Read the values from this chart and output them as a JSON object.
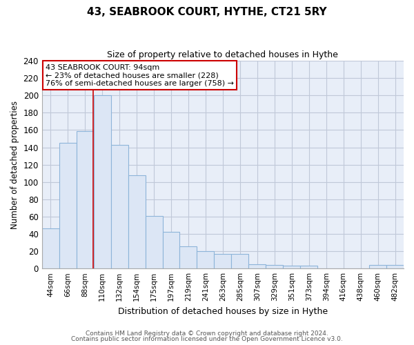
{
  "title": "43, SEABROOK COURT, HYTHE, CT21 5RY",
  "subtitle": "Size of property relative to detached houses in Hythe",
  "xlabel": "Distribution of detached houses by size in Hythe",
  "ylabel": "Number of detached properties",
  "bar_labels": [
    "44sqm",
    "66sqm",
    "88sqm",
    "110sqm",
    "132sqm",
    "154sqm",
    "175sqm",
    "197sqm",
    "219sqm",
    "241sqm",
    "263sqm",
    "285sqm",
    "307sqm",
    "329sqm",
    "351sqm",
    "373sqm",
    "394sqm",
    "416sqm",
    "438sqm",
    "460sqm",
    "482sqm"
  ],
  "bar_values": [
    46,
    145,
    159,
    200,
    143,
    108,
    61,
    42,
    26,
    20,
    17,
    17,
    5,
    4,
    3,
    3,
    0,
    0,
    0,
    4,
    4
  ],
  "bar_color": "#dce6f5",
  "bar_edge_color": "#8db4d9",
  "plot_bg_color": "#e8eef8",
  "ylim": [
    0,
    240
  ],
  "yticks": [
    0,
    20,
    40,
    60,
    80,
    100,
    120,
    140,
    160,
    180,
    200,
    220,
    240
  ],
  "vline_x": 2.475,
  "vline_color": "#cc0000",
  "annotation_title": "43 SEABROOK COURT: 94sqm",
  "annotation_line1": "← 23% of detached houses are smaller (228)",
  "annotation_line2": "76% of semi-detached houses are larger (758) →",
  "annotation_box_edge": "#cc0000",
  "footer1": "Contains HM Land Registry data © Crown copyright and database right 2024.",
  "footer2": "Contains public sector information licensed under the Open Government Licence v3.0.",
  "background_color": "#ffffff",
  "grid_color": "#c0c8d8"
}
